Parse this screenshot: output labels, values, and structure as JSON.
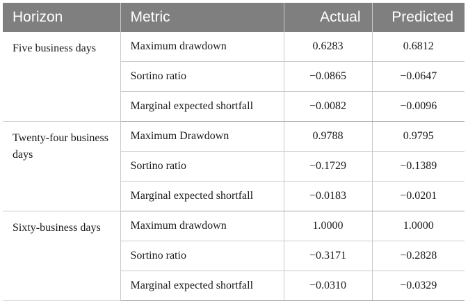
{
  "table": {
    "headers": {
      "horizon": "Horizon",
      "metric": "Metric",
      "actual": "Actual",
      "predicted": "Predicted"
    },
    "groups": [
      {
        "horizon": "Five business days",
        "rows": [
          {
            "metric": "Maximum drawdown",
            "actual": "0.6283",
            "predicted": "0.6812"
          },
          {
            "metric": "Sortino ratio",
            "actual": "−0.0865",
            "predicted": "−0.0647"
          },
          {
            "metric": "Marginal expected shortfall",
            "actual": "−0.0082",
            "predicted": "−0.0096"
          }
        ]
      },
      {
        "horizon": "Twenty-four business days",
        "rows": [
          {
            "metric": "Maximum Drawdown",
            "actual": "0.9788",
            "predicted": "0.9795"
          },
          {
            "metric": "Sortino ratio",
            "actual": "−0.1729",
            "predicted": "−0.1389"
          },
          {
            "metric": "Marginal expected shortfall",
            "actual": "−0.0183",
            "predicted": "−0.0201"
          }
        ]
      },
      {
        "horizon": "Sixty-business days",
        "rows": [
          {
            "metric": "Maximum drawdown",
            "actual": "1.0000",
            "predicted": "1.0000"
          },
          {
            "metric": "Sortino ratio",
            "actual": "−0.3171",
            "predicted": "−0.2828"
          },
          {
            "metric": "Marginal expected shortfall",
            "actual": "−0.0310",
            "predicted": "−0.0329"
          }
        ]
      }
    ]
  }
}
